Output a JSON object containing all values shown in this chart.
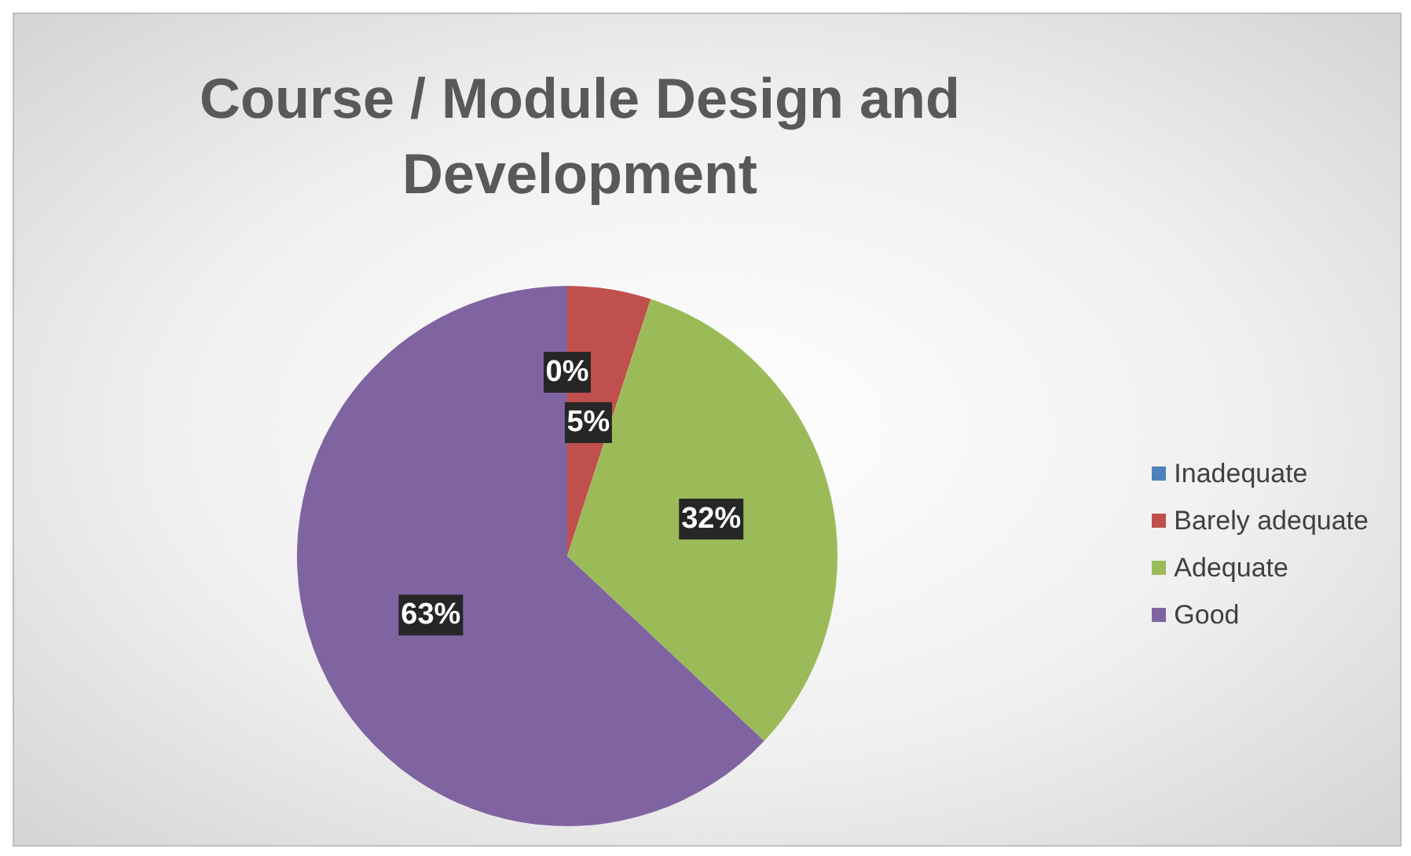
{
  "chart_data": {
    "type": "pie",
    "title": "Course / Module Design and Development",
    "categories": [
      "Inadequate",
      "Barely adequate",
      "Adequate",
      "Good"
    ],
    "values": [
      0,
      5,
      32,
      63
    ],
    "value_labels": [
      "0%",
      "5%",
      "32%",
      "63%"
    ],
    "colors": [
      "#4f81bd",
      "#c0504d",
      "#9bbb59",
      "#8064a2"
    ],
    "legend": "right"
  }
}
